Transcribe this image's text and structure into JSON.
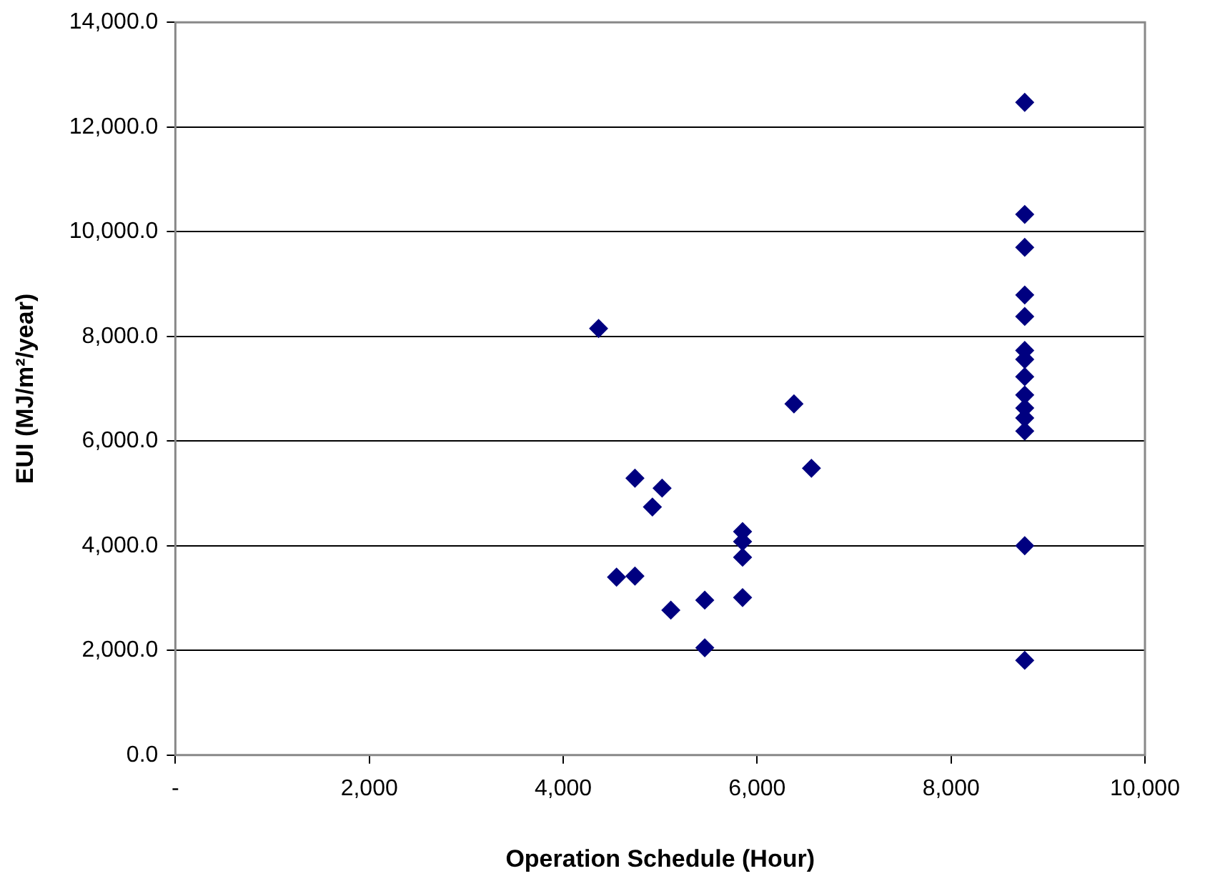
{
  "chart_data": {
    "type": "scatter",
    "xlabel": "Operation Schedule (Hour)",
    "ylabel": "EUI (MJ/m²/year)",
    "xlim": [
      0,
      10000
    ],
    "ylim": [
      0,
      14000
    ],
    "xticks": [
      {
        "value": 0,
        "label": "-"
      },
      {
        "value": 2000,
        "label": "2,000"
      },
      {
        "value": 4000,
        "label": "4,000"
      },
      {
        "value": 6000,
        "label": "6,000"
      },
      {
        "value": 8000,
        "label": "8,000"
      },
      {
        "value": 10000,
        "label": "10,000"
      }
    ],
    "yticks": [
      {
        "value": 0,
        "label": "0.0"
      },
      {
        "value": 2000,
        "label": "2,000.0"
      },
      {
        "value": 4000,
        "label": "4,000.0"
      },
      {
        "value": 6000,
        "label": "6,000.0"
      },
      {
        "value": 8000,
        "label": "8,000.0"
      },
      {
        "value": 10000,
        "label": "10,000.0"
      },
      {
        "value": 12000,
        "label": "12,000.0"
      },
      {
        "value": 14000,
        "label": "14,000.0"
      }
    ],
    "grid": "y",
    "legend": false,
    "marker": "diamond",
    "series": [
      {
        "color": "#000080",
        "x": [
          4365,
          4740,
          5020,
          4920,
          4550,
          4740,
          5110,
          5460,
          5460,
          5850,
          5850,
          5850,
          5850,
          6380,
          6560,
          8760,
          8760,
          8760,
          8760,
          8760,
          8760,
          8760,
          8760,
          8760,
          8760,
          8760,
          8760,
          8760,
          8760
        ],
        "values": [
          8150,
          5290,
          5100,
          4740,
          3400,
          3420,
          2770,
          2960,
          2050,
          4270,
          4080,
          3780,
          3010,
          6710,
          5480,
          12470,
          10330,
          9700,
          8790,
          8380,
          7730,
          7560,
          7230,
          6880,
          6630,
          6440,
          6190,
          4000,
          1810
        ]
      }
    ]
  }
}
